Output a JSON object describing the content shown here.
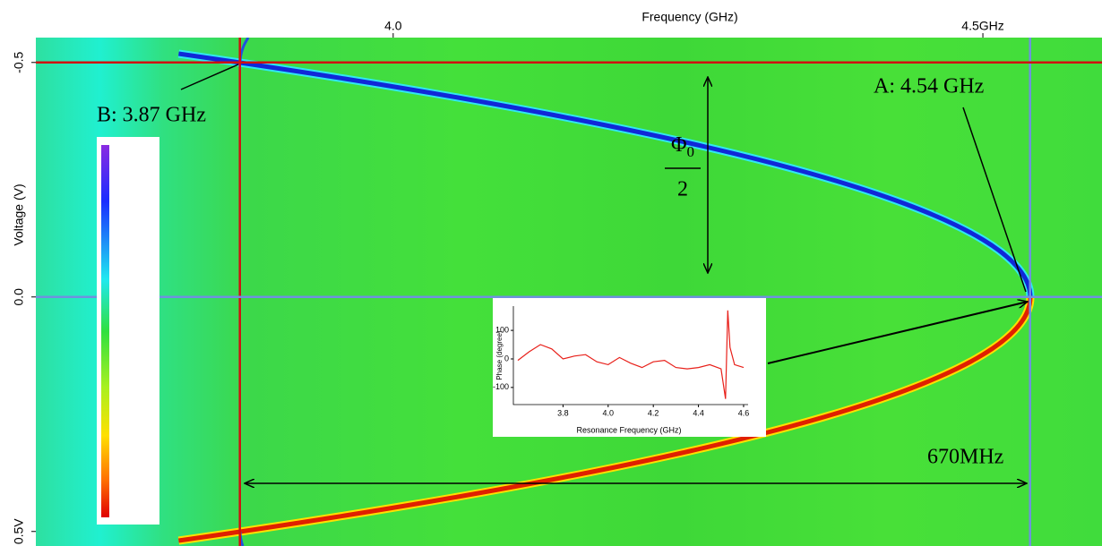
{
  "chart_data": [
    {
      "type": "heatmap",
      "xlabel": "Frequency (GHz)",
      "ylabel": "Voltage (V)",
      "xlim": [
        3.697,
        4.601
      ],
      "xticks": [
        {
          "value": 4.0,
          "label": "4.0"
        },
        {
          "value": 4.5,
          "label": "4.5GHz"
        }
      ],
      "ylim": [
        -0.553,
        0.531
      ],
      "yticks": [
        -0.5,
        {
          "value": 0,
          "label": "0.0"
        },
        {
          "value": 0.5,
          "label": "0.5V"
        }
      ],
      "colorbar": {
        "lim": [
          -180,
          180
        ],
        "ticks": [
          150,
          100,
          50,
          0,
          -50,
          -100,
          -150
        ]
      },
      "markers": {
        "x": [
          3.87,
          4.54
        ],
        "y": [
          -0.5,
          0
        ]
      },
      "annotations": {
        "a": "A: 4.54 GHz",
        "b": "B: 3.87 GHz",
        "span": "670MHz",
        "phi": "Φ",
        "phi_sub": "0",
        "phi_den": "2"
      }
    },
    {
      "type": "line",
      "xlabel": "Resonance Frequency (GHz)",
      "ylabel": "Phase (degree)",
      "color": "#e8201a",
      "xlim": [
        3.58,
        4.62
      ],
      "xticks": [
        3.8,
        {
          "value": 4.0,
          "label": "4.0"
        },
        4.2,
        4.4,
        4.6
      ],
      "ylim": [
        -160,
        185
      ],
      "yticks": [
        100,
        0,
        -100
      ],
      "x": [
        3.6,
        3.65,
        3.7,
        3.75,
        3.8,
        3.85,
        3.9,
        3.95,
        4.0,
        4.05,
        4.1,
        4.15,
        4.2,
        4.25,
        4.3,
        4.35,
        4.4,
        4.45,
        4.5,
        4.52,
        4.53,
        4.54,
        4.56,
        4.6
      ],
      "values": [
        -5,
        25,
        50,
        35,
        0,
        10,
        15,
        -10,
        -20,
        5,
        -15,
        -30,
        -10,
        -5,
        -30,
        -35,
        -30,
        -20,
        -35,
        -140,
        170,
        40,
        -20,
        -30
      ]
    }
  ]
}
